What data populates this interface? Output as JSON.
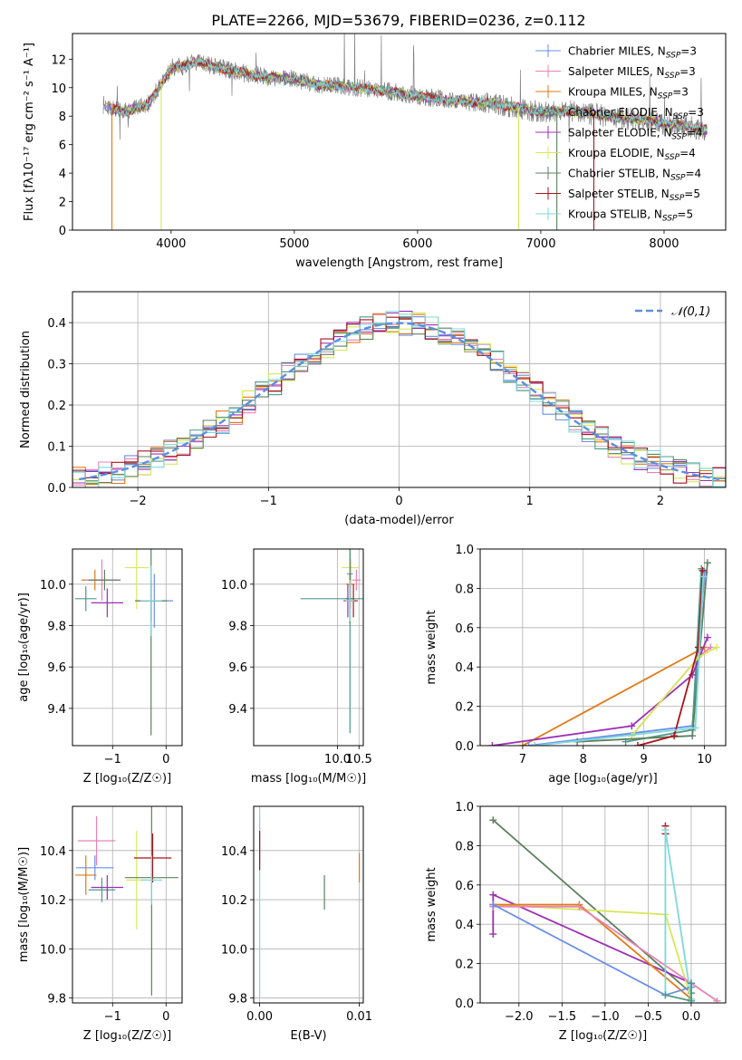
{
  "title": "PLATE=2266, MJD=53679, FIBERID=0236, z=0.112",
  "models": [
    {
      "name": "Chabrier MILES",
      "nssp": "3",
      "color": "#6a8fe8"
    },
    {
      "name": "Salpeter MILES",
      "nssp": "3",
      "color": "#e883b4"
    },
    {
      "name": "Kroupa MILES",
      "nssp": "3",
      "color": "#e07a17"
    },
    {
      "name": "Chabrier ELODIE",
      "nssp": "3",
      "color": "#4d9a8a"
    },
    {
      "name": "Salpeter ELODIE",
      "nssp": "4",
      "color": "#9b30b5"
    },
    {
      "name": "Kroupa ELODIE",
      "nssp": "4",
      "color": "#d6e85a"
    },
    {
      "name": "Chabrier STELIB",
      "nssp": "4",
      "color": "#5e8060"
    },
    {
      "name": "Salpeter STELIB",
      "nssp": "5",
      "color": "#a8141e"
    },
    {
      "name": "Kroupa STELIB",
      "nssp": "5",
      "color": "#7fd8dc"
    }
  ],
  "chart_data": [
    {
      "id": "spectrum",
      "type": "line",
      "xlabel": "wavelength [Angstrom, rest frame]",
      "ylabel": "Flux [fλ10⁻¹⁷ erg cm⁻² s⁻¹ A⁻¹]",
      "xlim": [
        3200,
        8500
      ],
      "ylim": [
        0,
        13.8
      ],
      "xticks": [
        4000,
        5000,
        6000,
        7000,
        8000
      ],
      "yticks": [
        0,
        2,
        4,
        6,
        8,
        10,
        12
      ],
      "data_color": "#808080",
      "continuum": {
        "x": [
          3450,
          3600,
          3800,
          4000,
          4200,
          4400,
          4600,
          4800,
          5000,
          5200,
          5400,
          5600,
          5800,
          6000,
          6200,
          6400,
          6600,
          6800,
          7000,
          7200,
          7400,
          7600,
          7800,
          8000,
          8200,
          8350
        ],
        "y": [
          8.8,
          8.3,
          8.7,
          11.3,
          11.8,
          11.4,
          11.0,
          10.7,
          10.6,
          10.2,
          10.1,
          9.9,
          9.7,
          9.4,
          9.2,
          9.0,
          8.9,
          8.6,
          8.3,
          8.4,
          8.2,
          7.9,
          7.8,
          7.5,
          7.3,
          7.0
        ]
      },
      "legend": "upper right"
    },
    {
      "id": "residuals",
      "type": "histogram",
      "xlabel": "(data-model)/error",
      "ylabel": "Normed distribution",
      "xlim": [
        -2.5,
        2.5
      ],
      "ylim": [
        0,
        0.475
      ],
      "xticks": [
        -2,
        -1,
        0,
        1,
        2
      ],
      "yticks": [
        0.0,
        0.1,
        0.2,
        0.3,
        0.4
      ],
      "bin_width": 0.1,
      "grid": true,
      "reference": {
        "label": "𝒩(0,1)",
        "color": "#5b8fe0"
      },
      "legend": "upper right"
    },
    {
      "id": "age-metallicity",
      "type": "scatter",
      "xlabel": "Z [log₁₀(Z/Z☉)]",
      "ylabel": "age  [log₁₀(age/yr)]",
      "xlim": [
        -1.75,
        0.3
      ],
      "ylim": [
        9.22,
        10.17
      ],
      "xticks": [
        -1,
        0
      ],
      "yticks": [
        9.4,
        9.6,
        9.8,
        10.0
      ],
      "grid": true,
      "points": [
        {
          "x": -1.33,
          "y": 10.02,
          "xerr": 0.25,
          "yerr": 0.05,
          "c": 2
        },
        {
          "x": -1.2,
          "y": 10.02,
          "xerr": 0.3,
          "yerr": 0.1,
          "c": 1
        },
        {
          "x": -1.5,
          "y": 9.93,
          "xerr": 0.2,
          "yerr": 0.06,
          "c": 3
        },
        {
          "x": -1.15,
          "y": 10.02,
          "xerr": 0.3,
          "yerr": 0.05,
          "c": 6
        },
        {
          "x": -1.1,
          "y": 9.91,
          "xerr": 0.3,
          "yerr": 0.07,
          "c": 4
        },
        {
          "x": -0.55,
          "y": 10.08,
          "xerr": 0.22,
          "yerr": 0.2,
          "c": 5
        },
        {
          "x": -0.22,
          "y": 9.92,
          "xerr": 0.35,
          "yerr": 0.13,
          "c": 0
        },
        {
          "x": -0.28,
          "y": 9.92,
          "xerr": 0.3,
          "yerr": 0.65,
          "c": 6
        },
        {
          "x": -0.28,
          "y": 9.92,
          "xerr": 0.2,
          "yerr": 0.1,
          "c": 7
        },
        {
          "x": -0.28,
          "y": 9.92,
          "xerr": 0.2,
          "yerr": 0.17,
          "c": 8
        }
      ]
    },
    {
      "id": "age-mass",
      "type": "scatter",
      "xlabel": "mass [log₁₀(M/M☉)]",
      "ylabel": "",
      "xlim": [
        8.05,
        10.6
      ],
      "ylim": [
        9.22,
        10.17
      ],
      "xticks": [
        10.0,
        10.5
      ],
      "yticks": [
        9.4,
        9.6,
        9.8,
        10.0
      ],
      "grid": true,
      "points": [
        {
          "x": 10.44,
          "y": 10.02,
          "xerr": 0.1,
          "yerr": 0.05,
          "c": 1
        },
        {
          "x": 10.3,
          "y": 10.08,
          "xerr": 0.2,
          "yerr": 0.1,
          "c": 5
        },
        {
          "x": 10.29,
          "y": 10.05,
          "xerr": 0.07,
          "yerr": 0.2,
          "c": 0
        },
        {
          "x": 10.3,
          "y": 10.0,
          "xerr": 0.1,
          "yerr": 0.12,
          "c": 2
        },
        {
          "x": 10.29,
          "y": 9.93,
          "xerr": 1.15,
          "yerr": 0.65,
          "c": 3
        },
        {
          "x": 10.24,
          "y": 9.92,
          "xerr": 0.1,
          "yerr": 0.08,
          "c": 4
        },
        {
          "x": 10.37,
          "y": 9.92,
          "xerr": 0.1,
          "yerr": 0.08,
          "c": 7
        },
        {
          "x": 10.29,
          "y": 9.93,
          "xerr": 0.1,
          "yerr": 0.12,
          "c": 6
        },
        {
          "x": 10.29,
          "y": 9.92,
          "xerr": 0.1,
          "yerr": 0.1,
          "c": 8
        }
      ]
    },
    {
      "id": "weight-age",
      "type": "line",
      "xlabel": "age  [log₁₀(age/yr)]",
      "ylabel": "mass weight",
      "xlim": [
        6.3,
        10.35
      ],
      "ylim": [
        0,
        1.0
      ],
      "xticks": [
        7,
        8,
        9,
        10
      ],
      "yticks": [
        0.0,
        0.2,
        0.4,
        0.6,
        0.8,
        1.0
      ],
      "grid": true,
      "series": [
        {
          "c": 2,
          "x": [
            7.0,
            10.0
          ],
          "y": [
            0.0,
            0.5
          ]
        },
        {
          "c": 1,
          "x": [
            8.8,
            9.9,
            10.1
          ],
          "y": [
            0.05,
            0.45,
            0.5
          ]
        },
        {
          "c": 0,
          "x": [
            7.1,
            9.8,
            10.0
          ],
          "y": [
            0.0,
            0.1,
            0.88
          ]
        },
        {
          "c": 3,
          "x": [
            8.7,
            9.8,
            9.95
          ],
          "y": [
            0.02,
            0.08,
            0.9
          ]
        },
        {
          "c": 4,
          "x": [
            6.5,
            8.8,
            9.8,
            10.05
          ],
          "y": [
            0.0,
            0.1,
            0.36,
            0.55
          ]
        },
        {
          "c": 5,
          "x": [
            8.8,
            9.9,
            10.2
          ],
          "y": [
            0.05,
            0.45,
            0.5
          ]
        },
        {
          "c": 6,
          "x": [
            7.9,
            9.8,
            10.05
          ],
          "y": [
            0.02,
            0.05,
            0.93
          ]
        },
        {
          "c": 7,
          "x": [
            8.9,
            9.5,
            9.9,
            9.97
          ],
          "y": [
            0.0,
            0.05,
            0.5,
            0.89
          ]
        },
        {
          "c": 8,
          "x": [
            7.2,
            9.85,
            9.98
          ],
          "y": [
            0.0,
            0.09,
            0.86
          ]
        }
      ]
    },
    {
      "id": "mass-metallicity",
      "type": "scatter",
      "xlabel": "Z [log₁₀(Z/Z☉)]",
      "ylabel": "mass [log₁₀(M/M☉)]",
      "xlim": [
        -1.75,
        0.3
      ],
      "ylim": [
        9.78,
        10.58
      ],
      "xticks": [
        -1,
        0
      ],
      "yticks": [
        9.8,
        10.0,
        10.2,
        10.4
      ],
      "grid": true,
      "points": [
        {
          "x": -1.3,
          "y": 10.44,
          "xerr": 0.35,
          "yerr": 0.1,
          "c": 1
        },
        {
          "x": -1.33,
          "y": 10.33,
          "xerr": 0.35,
          "yerr": 0.05,
          "c": 0
        },
        {
          "x": -1.5,
          "y": 10.3,
          "xerr": 0.2,
          "yerr": 0.08,
          "c": 2
        },
        {
          "x": -1.2,
          "y": 10.24,
          "xerr": 0.25,
          "yerr": 0.05,
          "c": 3
        },
        {
          "x": -1.1,
          "y": 10.25,
          "xerr": 0.3,
          "yerr": 0.05,
          "c": 4
        },
        {
          "x": -0.55,
          "y": 10.28,
          "xerr": 0.2,
          "yerr": 0.2,
          "c": 5
        },
        {
          "x": -0.25,
          "y": 10.37,
          "xerr": 0.35,
          "yerr": 0.1,
          "c": 7
        },
        {
          "x": -0.27,
          "y": 10.29,
          "xerr": 0.5,
          "yerr": 0.48,
          "c": 6
        },
        {
          "x": -0.27,
          "y": 10.28,
          "xerr": 0.2,
          "yerr": 0.1,
          "c": 8
        }
      ]
    },
    {
      "id": "mass-ebv",
      "type": "scatter",
      "xlabel": "E(B-V)",
      "ylabel": "",
      "xlim": [
        -0.0006,
        0.0104
      ],
      "ylim": [
        9.78,
        10.58
      ],
      "xticks": [
        0.0,
        0.01
      ],
      "xtick_labels": [
        "0.00",
        "0.01"
      ],
      "yticks": [
        9.8,
        10.0,
        10.2,
        10.4
      ],
      "grid": true,
      "points": [
        {
          "x": 0.0,
          "y": 10.44,
          "xerr": 0,
          "yerr": 0.1,
          "c": 1
        },
        {
          "x": 0.0,
          "y": 10.3,
          "xerr": 0,
          "yerr": 0.5,
          "c": 8
        },
        {
          "x": 0.0,
          "y": 10.4,
          "xerr": 0,
          "yerr": 0.08,
          "c": 7
        },
        {
          "x": 0.0065,
          "y": 10.23,
          "xerr": 0,
          "yerr": 0.07,
          "c": 6
        },
        {
          "x": 0.01,
          "y": 10.33,
          "xerr": 0,
          "yerr": 0.06,
          "c": 2
        }
      ]
    },
    {
      "id": "weight-metallicity",
      "type": "line",
      "xlabel": "Z [log₁₀(Z/Z☉)]",
      "ylabel": "mass weight",
      "xlim": [
        -2.45,
        0.4
      ],
      "ylim": [
        0,
        1.0
      ],
      "xticks": [
        -2.0,
        -1.5,
        -1.0,
        -0.5,
        0.0
      ],
      "yticks": [
        0.0,
        0.2,
        0.4,
        0.6,
        0.8,
        1.0
      ],
      "grid": true,
      "series": [
        {
          "c": 6,
          "x": [
            -2.3,
            0.0
          ],
          "y": [
            0.93,
            0.05
          ]
        },
        {
          "c": 4,
          "x": [
            -2.3,
            -2.3,
            0.0
          ],
          "y": [
            0.35,
            0.55,
            0.1
          ]
        },
        {
          "c": 5,
          "x": [
            -2.3,
            -0.3,
            0.0
          ],
          "y": [
            0.5,
            0.45,
            0.02
          ]
        },
        {
          "c": 2,
          "x": [
            -2.3,
            -1.3,
            0.0
          ],
          "y": [
            0.5,
            0.5,
            0.02
          ]
        },
        {
          "c": 1,
          "x": [
            -2.3,
            -1.3,
            0.3
          ],
          "y": [
            0.49,
            0.49,
            0.01
          ]
        },
        {
          "c": 0,
          "x": [
            -2.3,
            -0.3,
            0.0
          ],
          "y": [
            0.5,
            0.04,
            0.08
          ]
        },
        {
          "c": 7,
          "x": [
            -0.3,
            -0.3
          ],
          "y": [
            0.86,
            0.9
          ]
        },
        {
          "c": 8,
          "x": [
            -0.3,
            -0.3,
            0.0
          ],
          "y": [
            0.04,
            0.88,
            0.02
          ]
        },
        {
          "c": 3,
          "x": [
            -0.3,
            0.0,
            0.0
          ],
          "y": [
            0.04,
            0.01,
            0.1
          ]
        }
      ]
    }
  ]
}
